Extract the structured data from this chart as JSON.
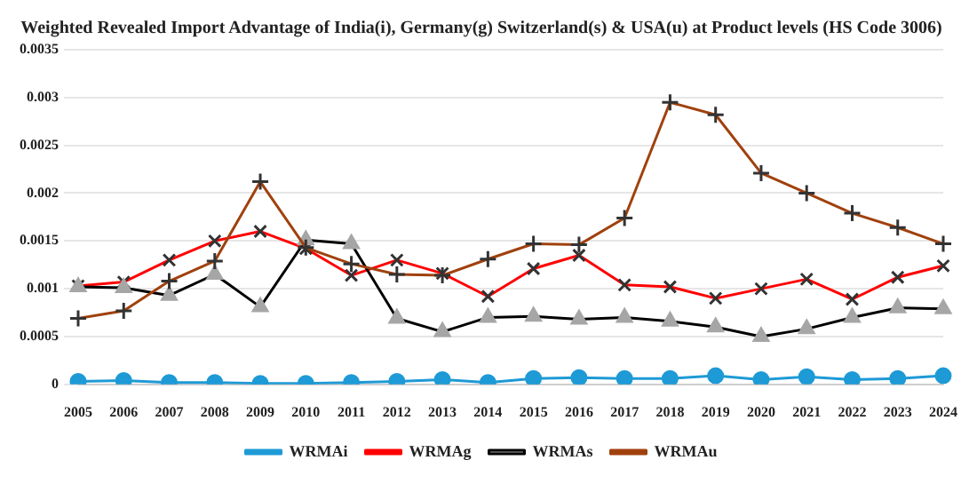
{
  "chart_data": {
    "type": "line",
    "title": "Weighted Revealed Import Advantage of India(i), Germany(g) Switzerland(s) & USA(u) at Product levels (HS Code 3006)",
    "categories": [
      "2005",
      "2006",
      "2007",
      "2008",
      "2009",
      "2010",
      "2011",
      "2012",
      "2013",
      "2014",
      "2015",
      "2016",
      "2017",
      "2018",
      "2019",
      "2020",
      "2021",
      "2022",
      "2023",
      "2024"
    ],
    "series": [
      {
        "name": "WRMAi",
        "color": "#1e9ad6",
        "marker": "circle",
        "values": [
          3e-05,
          4e-05,
          2e-05,
          2e-05,
          1e-05,
          1e-05,
          2e-05,
          3e-05,
          5e-05,
          2e-05,
          6e-05,
          7e-05,
          6e-05,
          6e-05,
          9e-05,
          5e-05,
          8e-05,
          5e-05,
          6e-05,
          9e-05
        ]
      },
      {
        "name": "WRMAg",
        "color": "#ff0000",
        "marker": "cross",
        "values": [
          0.00103,
          0.00107,
          0.0013,
          0.0015,
          0.0016,
          0.00142,
          0.00114,
          0.0013,
          0.00116,
          0.00092,
          0.00121,
          0.00135,
          0.00104,
          0.00102,
          0.0009,
          0.001,
          0.0011,
          0.00089,
          0.00112,
          0.00124
        ]
      },
      {
        "name": "WRMAs",
        "color": "#000000",
        "marker": "triangle",
        "values": [
          0.00102,
          0.00101,
          0.00093,
          0.00115,
          0.00081,
          0.00151,
          0.00147,
          0.00069,
          0.00055,
          0.0007,
          0.00071,
          0.00068,
          0.0007,
          0.00066,
          0.0006,
          0.0005,
          0.00058,
          0.0007,
          0.0008,
          0.00079
        ]
      },
      {
        "name": "WRMAu",
        "color": "#a0410d",
        "marker": "plus",
        "values": [
          0.00069,
          0.00077,
          0.00108,
          0.00129,
          0.00212,
          0.00143,
          0.00126,
          0.00115,
          0.00114,
          0.00131,
          0.00147,
          0.00146,
          0.00174,
          0.00295,
          0.00282,
          0.00221,
          0.002,
          0.00179,
          0.00164,
          0.00147
        ]
      }
    ],
    "ylim": [
      0,
      0.0035
    ],
    "yticks": [
      0,
      0.0005,
      0.001,
      0.0015,
      0.002,
      0.0025,
      0.003,
      0.0035
    ],
    "grid": "y",
    "legend": "bottom"
  }
}
